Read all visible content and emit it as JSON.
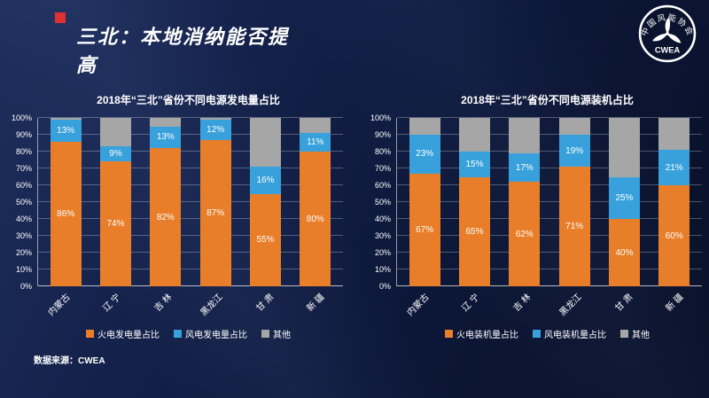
{
  "slide": {
    "title": "三北：本地消纳能否提高",
    "source": "数据来源：CWEA"
  },
  "logo": {
    "org_cn": "中国风能协会",
    "org_en": "CWEA"
  },
  "colors": {
    "thermal_orange": "#E87E2A",
    "wind_blue": "#38A1DB",
    "other_gray": "#A6A6A6",
    "background_navy": "#0C1838",
    "accent_red": "#E03131"
  },
  "chart_data": [
    {
      "type": "bar",
      "stacked": true,
      "title": "2018年“三北”省份不同电源发电量占比",
      "categories": [
        "内蒙古",
        "辽 宁",
        "吉 林",
        "黑龙江",
        "甘 肃",
        "新 疆"
      ],
      "ylim": [
        0,
        100
      ],
      "yticks": [
        "0%",
        "10%",
        "20%",
        "30%",
        "40%",
        "50%",
        "60%",
        "70%",
        "80%",
        "90%",
        "100%"
      ],
      "grid": true,
      "legend_position": "bottom",
      "series": [
        {
          "name": "火电发电量占比",
          "color": "#E87E2A",
          "show_labels": true,
          "values": [
            86,
            74,
            82,
            87,
            55,
            80
          ]
        },
        {
          "name": "风电发电量占比",
          "color": "#38A1DB",
          "show_labels": true,
          "values": [
            13,
            9,
            13,
            12,
            16,
            11
          ]
        },
        {
          "name": "其他",
          "color": "#A6A6A6",
          "show_labels": false,
          "values": [
            1,
            17,
            5,
            1,
            29,
            9
          ]
        }
      ]
    },
    {
      "type": "bar",
      "stacked": true,
      "title": "2018年“三北”省份不同电源装机占比",
      "categories": [
        "内蒙古",
        "辽 宁",
        "吉 林",
        "黑龙江",
        "甘 肃",
        "新 疆"
      ],
      "ylim": [
        0,
        100
      ],
      "yticks": [
        "0%",
        "10%",
        "20%",
        "30%",
        "40%",
        "50%",
        "60%",
        "70%",
        "80%",
        "90%",
        "100%"
      ],
      "grid": true,
      "legend_position": "bottom",
      "series": [
        {
          "name": "火电装机量占比",
          "color": "#E87E2A",
          "show_labels": true,
          "values": [
            67,
            65,
            62,
            71,
            40,
            60
          ]
        },
        {
          "name": "风电装机量占比",
          "color": "#38A1DB",
          "show_labels": true,
          "values": [
            23,
            15,
            17,
            19,
            25,
            21
          ]
        },
        {
          "name": "其他",
          "color": "#A6A6A6",
          "show_labels": false,
          "values": [
            10,
            20,
            21,
            10,
            35,
            19
          ]
        }
      ]
    }
  ]
}
